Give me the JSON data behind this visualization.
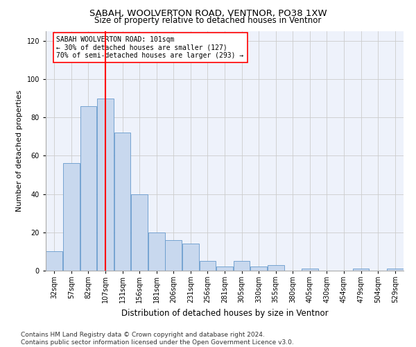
{
  "title": "SABAH, WOOLVERTON ROAD, VENTNOR, PO38 1XW",
  "subtitle": "Size of property relative to detached houses in Ventnor",
  "xlabel": "Distribution of detached houses by size in Ventnor",
  "ylabel": "Number of detached properties",
  "bar_color": "#c8d8ee",
  "bar_edge_color": "#6699cc",
  "grid_color": "#cccccc",
  "background_color": "#eef2fb",
  "annotation_line_color": "red",
  "annotation_text": "SABAH WOOLVERTON ROAD: 101sqm\n← 30% of detached houses are smaller (127)\n70% of semi-detached houses are larger (293) →",
  "annotation_box_color": "white",
  "annotation_box_edge": "red",
  "property_line_x": 3,
  "categories": [
    "32sqm",
    "57sqm",
    "82sqm",
    "107sqm",
    "131sqm",
    "156sqm",
    "181sqm",
    "206sqm",
    "231sqm",
    "256sqm",
    "281sqm",
    "305sqm",
    "330sqm",
    "355sqm",
    "380sqm",
    "405sqm",
    "430sqm",
    "454sqm",
    "479sqm",
    "504sqm",
    "529sqm"
  ],
  "values": [
    10,
    56,
    86,
    90,
    72,
    40,
    20,
    16,
    14,
    5,
    2,
    5,
    2,
    3,
    0,
    1,
    0,
    0,
    1,
    0,
    1
  ],
  "ylim": [
    0,
    125
  ],
  "yticks": [
    0,
    20,
    40,
    60,
    80,
    100,
    120
  ],
  "footer": "Contains HM Land Registry data © Crown copyright and database right 2024.\nContains public sector information licensed under the Open Government Licence v3.0.",
  "footer_fontsize": 6.5,
  "title_fontsize": 9.5,
  "subtitle_fontsize": 8.5,
  "xlabel_fontsize": 8.5,
  "ylabel_fontsize": 8,
  "tick_fontsize": 7,
  "annot_fontsize": 7
}
